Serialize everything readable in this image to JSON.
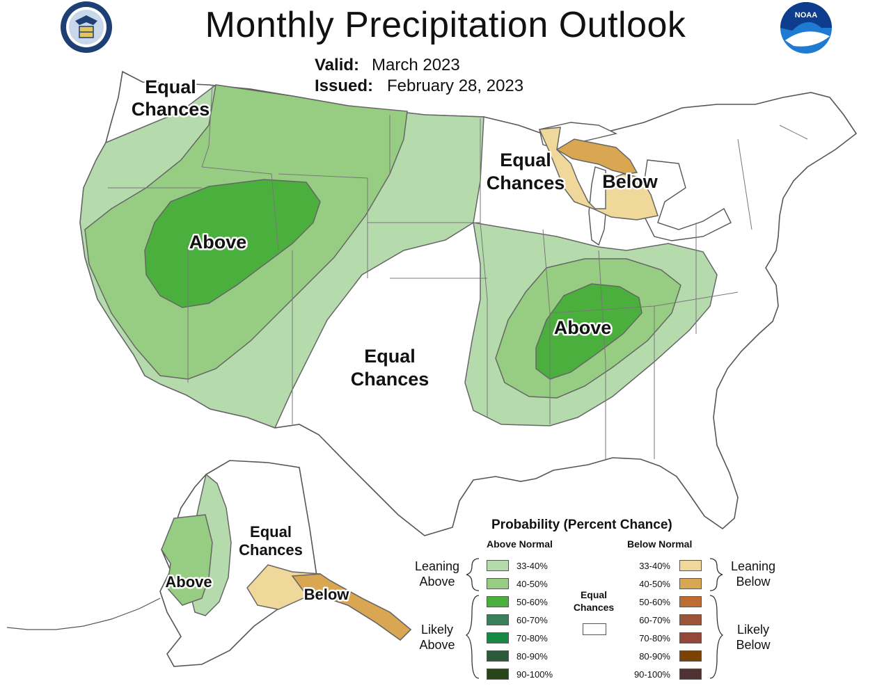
{
  "header": {
    "title": "Monthly Precipitation Outlook",
    "valid_label": "Valid:",
    "valid_value": "March 2023",
    "issued_label": "Issued:",
    "issued_value": "February 28, 2023"
  },
  "logos": {
    "left": "department-of-commerce-seal",
    "right": "noaa-logo",
    "right_text": "NOAA"
  },
  "map_labels": {
    "nw_equal": [
      "Equal",
      "Chances"
    ],
    "west_above": "Above",
    "south_equal": [
      "Equal",
      "Chances"
    ],
    "glakes_equal": [
      "Equal",
      "Chances"
    ],
    "glakes_below": "Below",
    "ohio_above": "Above",
    "ak_equal": [
      "Equal",
      "Chances"
    ],
    "ak_above": "Above",
    "ak_below": "Below"
  },
  "legend": {
    "title": "Probability (Percent Chance)",
    "above_header": "Above Normal",
    "below_header": "Below Normal",
    "equal_label": [
      "Equal",
      "Chances"
    ],
    "leaning_above": [
      "Leaning",
      "Above"
    ],
    "likely_above": [
      "Likely",
      "Above"
    ],
    "leaning_below": [
      "Leaning",
      "Below"
    ],
    "likely_below": [
      "Likely",
      "Below"
    ],
    "above": [
      {
        "range": "33-40%",
        "color": "#b5dbad"
      },
      {
        "range": "40-50%",
        "color": "#97cd82"
      },
      {
        "range": "50-60%",
        "color": "#4aaf3d"
      },
      {
        "range": "60-70%",
        "color": "#3a7f5b"
      },
      {
        "range": "70-80%",
        "color": "#168a44"
      },
      {
        "range": "80-90%",
        "color": "#2a5a3a"
      },
      {
        "range": "90-100%",
        "color": "#28451a"
      }
    ],
    "below": [
      {
        "range": "33-40%",
        "color": "#f0d79a"
      },
      {
        "range": "40-50%",
        "color": "#d9a652"
      },
      {
        "range": "50-60%",
        "color": "#bf6c33"
      },
      {
        "range": "60-70%",
        "color": "#9b5436"
      },
      {
        "range": "70-80%",
        "color": "#94473a"
      },
      {
        "range": "80-90%",
        "color": "#7c4204"
      },
      {
        "range": "90-100%",
        "color": "#4f3333"
      }
    ]
  }
}
